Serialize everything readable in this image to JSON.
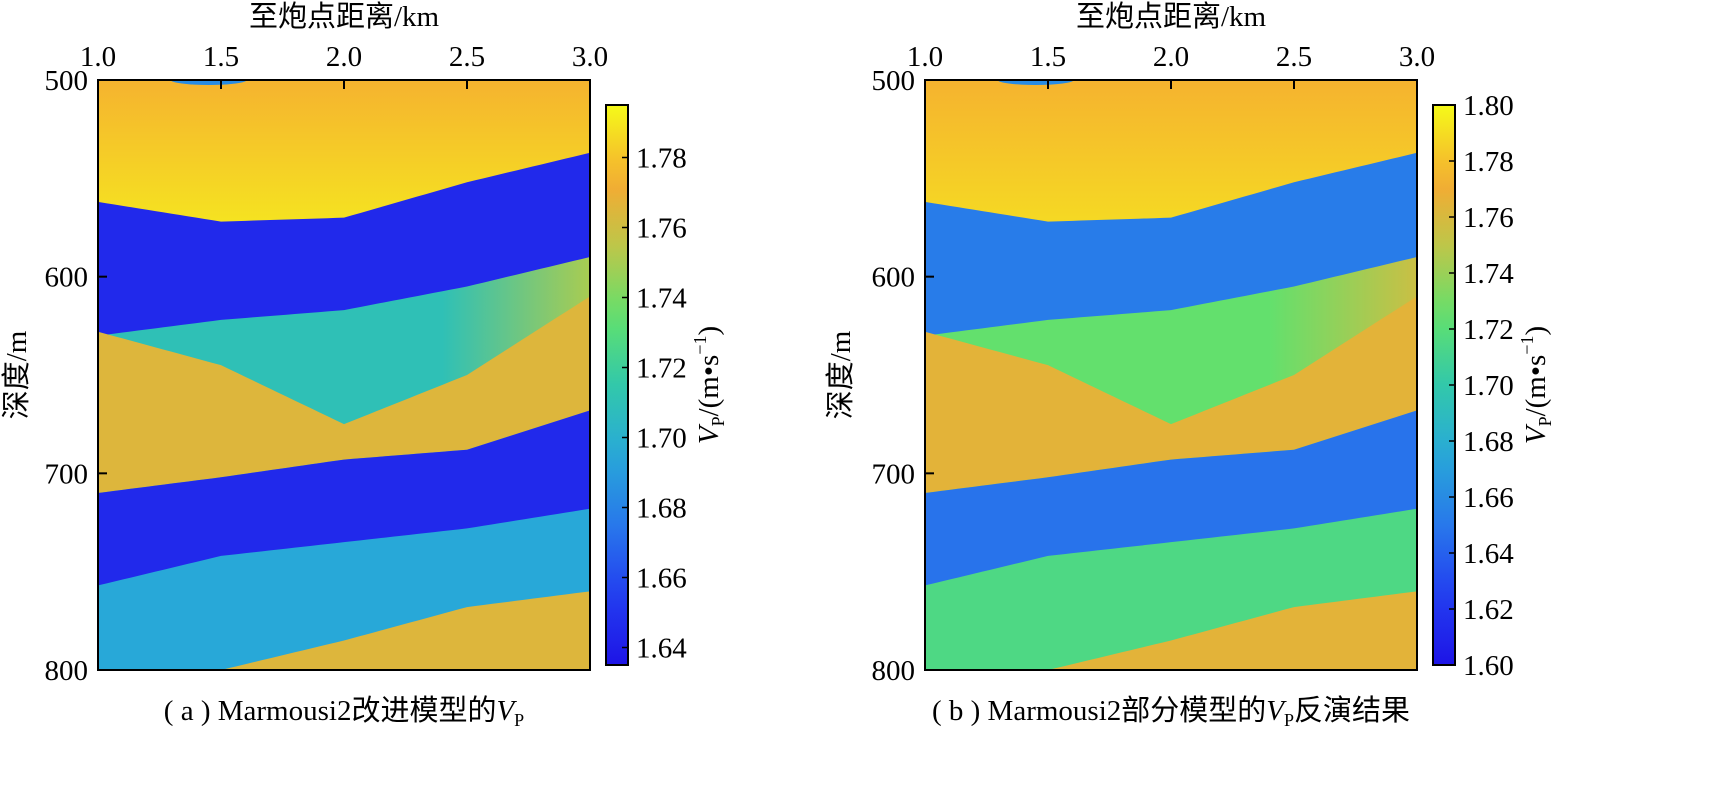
{
  "chart_data": [
    {
      "type": "heatmap",
      "panel": "a",
      "caption_prefix": "( a ) Marmousi2改进模型的",
      "caption_var": "V",
      "caption_sub": "P",
      "caption_suffix": "",
      "xlabel": "至炮点距离/km",
      "ylabel": "深度/m",
      "xlim": [
        1.0,
        3.0
      ],
      "ylim": [
        500,
        800
      ],
      "x_ticks": [
        "1.0",
        "1.5",
        "2.0",
        "2.5",
        "3.0"
      ],
      "x_tick_values": [
        1.0,
        1.5,
        2.0,
        2.5,
        3.0
      ],
      "y_ticks": [
        "500",
        "600",
        "700",
        "800"
      ],
      "y_tick_values": [
        500,
        600,
        700,
        800
      ],
      "colorbar": {
        "label_var": "V",
        "label_sub": "P",
        "label_unit": "/(m•s",
        "label_exp": "−1",
        "label_close": ")",
        "range": [
          1.635,
          1.795
        ],
        "ticks": [
          "1.64",
          "1.66",
          "1.68",
          "1.70",
          "1.72",
          "1.74",
          "1.76",
          "1.78"
        ],
        "tick_values": [
          1.64,
          1.66,
          1.68,
          1.7,
          1.72,
          1.74,
          1.76,
          1.78
        ]
      },
      "layers": [
        {
          "top_depths": [
            500,
            500,
            500,
            500,
            500
          ],
          "value": 1.775,
          "gradient_bottom": 1.79
        },
        {
          "top_depths": [
            562,
            572,
            570,
            552,
            537
          ],
          "value": 1.645
        },
        {
          "top_depths": [
            630,
            622,
            617,
            605,
            590
          ],
          "value": 1.71,
          "right_value": 1.75
        },
        {
          "top_depths": [
            628,
            645,
            675,
            650,
            610
          ],
          "value": 1.765,
          "region": "left-lens"
        },
        {
          "top_depths": [
            710,
            702,
            693,
            688,
            668
          ],
          "value": 1.645
        },
        {
          "top_depths": [
            757,
            742,
            735,
            728,
            718
          ],
          "value": 1.695
        },
        {
          "top_depths": [
            815,
            800,
            785,
            768,
            760
          ],
          "value": 1.765
        }
      ]
    },
    {
      "type": "heatmap",
      "panel": "b",
      "caption_prefix": "( b ) Marmousi2部分模型的",
      "caption_var": "V",
      "caption_sub": "P",
      "caption_suffix": "反演结果",
      "xlabel": "至炮点距离/km",
      "ylabel": "深度/m",
      "xlim": [
        1.0,
        3.0
      ],
      "ylim": [
        500,
        800
      ],
      "x_ticks": [
        "1.0",
        "1.5",
        "2.0",
        "2.5",
        "3.0"
      ],
      "x_tick_values": [
        1.0,
        1.5,
        2.0,
        2.5,
        3.0
      ],
      "y_ticks": [
        "500",
        "600",
        "700",
        "800"
      ],
      "y_tick_values": [
        500,
        600,
        700,
        800
      ],
      "colorbar": {
        "label_var": "V",
        "label_sub": "P",
        "label_unit": "/(m•s",
        "label_exp": "−1",
        "label_close": ")",
        "range": [
          1.6,
          1.8
        ],
        "ticks": [
          "1.60",
          "1.62",
          "1.64",
          "1.66",
          "1.68",
          "1.70",
          "1.72",
          "1.74",
          "1.76",
          "1.78",
          "1.80"
        ],
        "tick_values": [
          1.6,
          1.62,
          1.64,
          1.66,
          1.68,
          1.7,
          1.72,
          1.74,
          1.76,
          1.78,
          1.8
        ]
      },
      "layers": [
        {
          "top_depths": [
            500,
            500,
            500,
            500,
            500
          ],
          "value": 1.775,
          "gradient_bottom": 1.79
        },
        {
          "top_depths": [
            562,
            572,
            570,
            552,
            537
          ],
          "value": 1.652
        },
        {
          "top_depths": [
            630,
            622,
            617,
            605,
            590
          ],
          "value": 1.725,
          "right_value": 1.755
        },
        {
          "top_depths": [
            628,
            645,
            675,
            650,
            610
          ],
          "value": 1.765,
          "region": "left-lens"
        },
        {
          "top_depths": [
            710,
            702,
            693,
            688,
            668
          ],
          "value": 1.648
        },
        {
          "top_depths": [
            757,
            742,
            735,
            728,
            718
          ],
          "value": 1.715
        },
        {
          "top_depths": [
            815,
            800,
            785,
            768,
            760
          ],
          "value": 1.765
        }
      ]
    }
  ]
}
